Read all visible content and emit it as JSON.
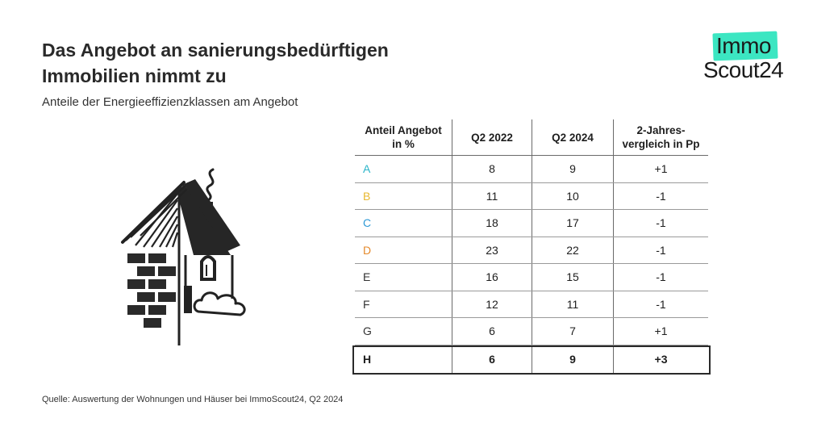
{
  "title_lines": [
    "Das Angebot an sanierungsbedürftigen",
    "Immobilien nimmt zu"
  ],
  "subtitle": "Anteile der Energieeffizienzklassen am Angebot",
  "logo": {
    "line1": "Immo",
    "line2": "Scout24",
    "accent": "#3ce6c2"
  },
  "source": "Quelle: Auswertung der Wohnungen und Häuser bei ImmoScout24, Q2 2024",
  "chart_data": {
    "type": "table",
    "columns": [
      "Anteil Angebot in %",
      "Q2 2022",
      "Q2 2024",
      "2-Jahres-vergleich in Pp"
    ],
    "rows": [
      {
        "class": "A",
        "color": "#2bb5c9",
        "q2_2022": "8",
        "q2_2024": "9",
        "diff": "+1"
      },
      {
        "class": "B",
        "color": "#e8b830",
        "q2_2022": "11",
        "q2_2024": "10",
        "diff": "-1"
      },
      {
        "class": "C",
        "color": "#2f9ad6",
        "q2_2022": "18",
        "q2_2024": "17",
        "diff": "-1"
      },
      {
        "class": "D",
        "color": "#e58a2c",
        "q2_2022": "23",
        "q2_2024": "22",
        "diff": "-1"
      },
      {
        "class": "E",
        "color": "#333333",
        "q2_2022": "16",
        "q2_2024": "15",
        "diff": "-1"
      },
      {
        "class": "F",
        "color": "#333333",
        "q2_2022": "12",
        "q2_2024": "11",
        "diff": "-1"
      },
      {
        "class": "G",
        "color": "#333333",
        "q2_2022": "6",
        "q2_2024": "7",
        "diff": "+1"
      },
      {
        "class": "H",
        "color": "#1e1e1e",
        "q2_2022": "6",
        "q2_2024": "9",
        "diff": "+3",
        "highlight": true
      }
    ]
  }
}
